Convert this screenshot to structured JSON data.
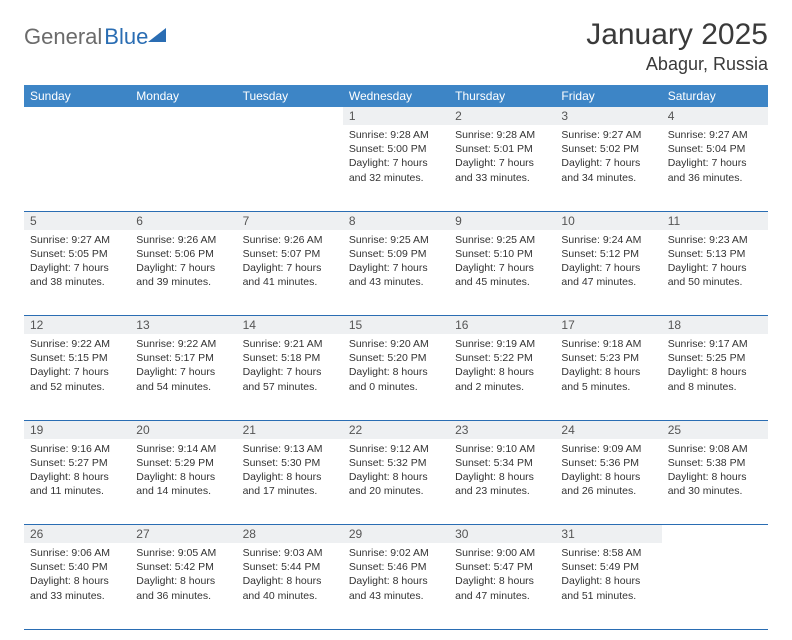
{
  "brand": {
    "part1": "General",
    "part2": "Blue"
  },
  "title": "January 2025",
  "location": "Abagur, Russia",
  "colors": {
    "header_bg": "#3d85c6",
    "header_fg": "#ffffff",
    "daynum_bg": "#eef0f2",
    "rule": "#2a6db3",
    "text": "#333333"
  },
  "weekdays": [
    "Sunday",
    "Monday",
    "Tuesday",
    "Wednesday",
    "Thursday",
    "Friday",
    "Saturday"
  ],
  "weeks": [
    {
      "nums": [
        "",
        "",
        "",
        "1",
        "2",
        "3",
        "4"
      ],
      "cells": [
        null,
        null,
        null,
        {
          "sr": "9:28 AM",
          "ss": "5:00 PM",
          "dh": 7,
          "dm": 32
        },
        {
          "sr": "9:28 AM",
          "ss": "5:01 PM",
          "dh": 7,
          "dm": 33
        },
        {
          "sr": "9:27 AM",
          "ss": "5:02 PM",
          "dh": 7,
          "dm": 34
        },
        {
          "sr": "9:27 AM",
          "ss": "5:04 PM",
          "dh": 7,
          "dm": 36
        }
      ]
    },
    {
      "nums": [
        "5",
        "6",
        "7",
        "8",
        "9",
        "10",
        "11"
      ],
      "cells": [
        {
          "sr": "9:27 AM",
          "ss": "5:05 PM",
          "dh": 7,
          "dm": 38
        },
        {
          "sr": "9:26 AM",
          "ss": "5:06 PM",
          "dh": 7,
          "dm": 39
        },
        {
          "sr": "9:26 AM",
          "ss": "5:07 PM",
          "dh": 7,
          "dm": 41
        },
        {
          "sr": "9:25 AM",
          "ss": "5:09 PM",
          "dh": 7,
          "dm": 43
        },
        {
          "sr": "9:25 AM",
          "ss": "5:10 PM",
          "dh": 7,
          "dm": 45
        },
        {
          "sr": "9:24 AM",
          "ss": "5:12 PM",
          "dh": 7,
          "dm": 47
        },
        {
          "sr": "9:23 AM",
          "ss": "5:13 PM",
          "dh": 7,
          "dm": 50
        }
      ]
    },
    {
      "nums": [
        "12",
        "13",
        "14",
        "15",
        "16",
        "17",
        "18"
      ],
      "cells": [
        {
          "sr": "9:22 AM",
          "ss": "5:15 PM",
          "dh": 7,
          "dm": 52
        },
        {
          "sr": "9:22 AM",
          "ss": "5:17 PM",
          "dh": 7,
          "dm": 54
        },
        {
          "sr": "9:21 AM",
          "ss": "5:18 PM",
          "dh": 7,
          "dm": 57
        },
        {
          "sr": "9:20 AM",
          "ss": "5:20 PM",
          "dh": 8,
          "dm": 0
        },
        {
          "sr": "9:19 AM",
          "ss": "5:22 PM",
          "dh": 8,
          "dm": 2
        },
        {
          "sr": "9:18 AM",
          "ss": "5:23 PM",
          "dh": 8,
          "dm": 5
        },
        {
          "sr": "9:17 AM",
          "ss": "5:25 PM",
          "dh": 8,
          "dm": 8
        }
      ]
    },
    {
      "nums": [
        "19",
        "20",
        "21",
        "22",
        "23",
        "24",
        "25"
      ],
      "cells": [
        {
          "sr": "9:16 AM",
          "ss": "5:27 PM",
          "dh": 8,
          "dm": 11
        },
        {
          "sr": "9:14 AM",
          "ss": "5:29 PM",
          "dh": 8,
          "dm": 14
        },
        {
          "sr": "9:13 AM",
          "ss": "5:30 PM",
          "dh": 8,
          "dm": 17
        },
        {
          "sr": "9:12 AM",
          "ss": "5:32 PM",
          "dh": 8,
          "dm": 20
        },
        {
          "sr": "9:10 AM",
          "ss": "5:34 PM",
          "dh": 8,
          "dm": 23
        },
        {
          "sr": "9:09 AM",
          "ss": "5:36 PM",
          "dh": 8,
          "dm": 26
        },
        {
          "sr": "9:08 AM",
          "ss": "5:38 PM",
          "dh": 8,
          "dm": 30
        }
      ]
    },
    {
      "nums": [
        "26",
        "27",
        "28",
        "29",
        "30",
        "31",
        ""
      ],
      "cells": [
        {
          "sr": "9:06 AM",
          "ss": "5:40 PM",
          "dh": 8,
          "dm": 33
        },
        {
          "sr": "9:05 AM",
          "ss": "5:42 PM",
          "dh": 8,
          "dm": 36
        },
        {
          "sr": "9:03 AM",
          "ss": "5:44 PM",
          "dh": 8,
          "dm": 40
        },
        {
          "sr": "9:02 AM",
          "ss": "5:46 PM",
          "dh": 8,
          "dm": 43
        },
        {
          "sr": "9:00 AM",
          "ss": "5:47 PM",
          "dh": 8,
          "dm": 47
        },
        {
          "sr": "8:58 AM",
          "ss": "5:49 PM",
          "dh": 8,
          "dm": 51
        },
        null
      ]
    }
  ],
  "labels": {
    "sunrise": "Sunrise: ",
    "sunset": "Sunset: ",
    "daylight": "Daylight: ",
    "hours": " hours",
    "and": "and ",
    "minutes": " minutes."
  }
}
